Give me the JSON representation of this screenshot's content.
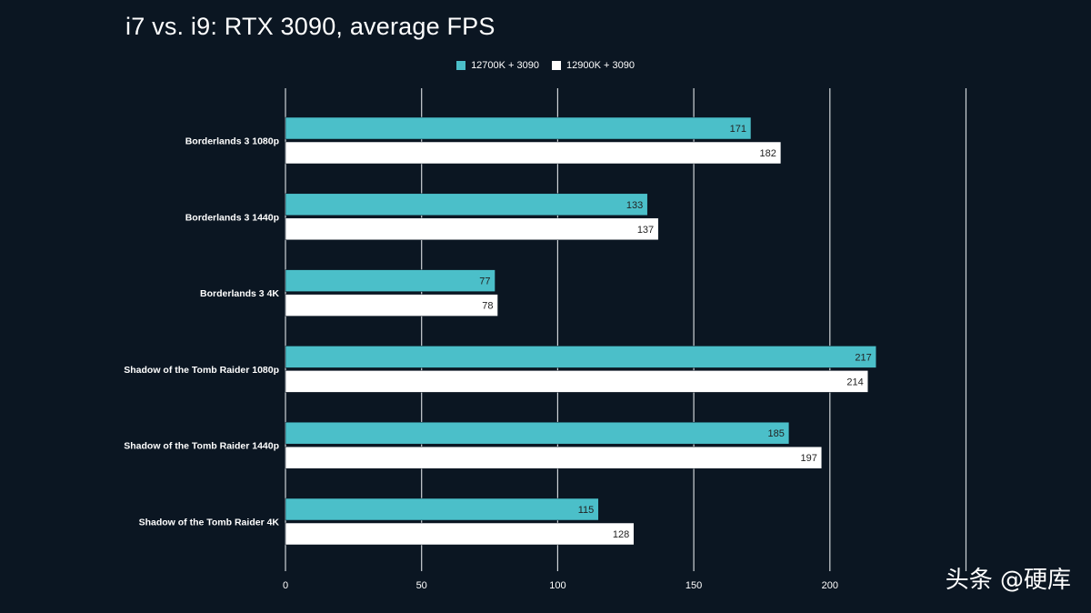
{
  "colors": {
    "background": "#0b1622",
    "series_1": "#4bbfc9",
    "series_2": "#ffffff",
    "grid": "#cfd4d8",
    "text": "#ffffff"
  },
  "watermark": "头条 @硬库",
  "chart_data": {
    "type": "bar",
    "orientation": "horizontal",
    "title": "i7 vs. i9: RTX 3090, average FPS",
    "categories": [
      "Borderlands 3 1080p",
      "Borderlands 3 1440p",
      "Borderlands 3 4K",
      "Shadow of the Tomb Raider 1080p",
      "Shadow of the Tomb Raider 1440p",
      "Shadow of the Tomb Raider 4K"
    ],
    "series": [
      {
        "name": "12700K + 3090",
        "values": [
          171,
          133,
          77,
          217,
          185,
          115
        ]
      },
      {
        "name": "12900K + 3090",
        "values": [
          182,
          137,
          78,
          214,
          197,
          128
        ]
      }
    ],
    "xlim": [
      0,
      250
    ],
    "x_ticks": [
      0,
      50,
      100,
      150,
      200
    ],
    "grid": true,
    "legend_position": "top-center",
    "data_labels": true
  }
}
